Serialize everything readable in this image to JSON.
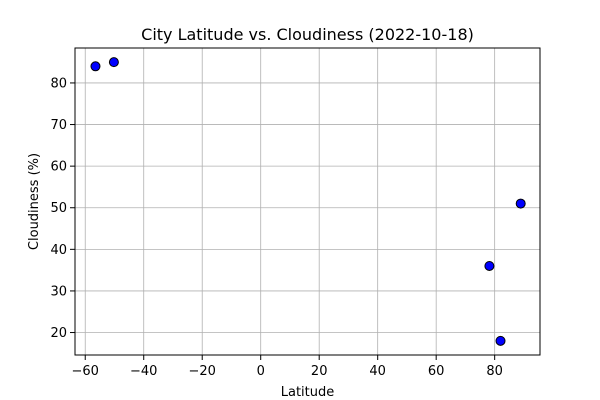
{
  "chart_data": {
    "type": "scatter",
    "title": "City Latitude vs. Cloudiness (2022-10-18)",
    "xlabel": "Latitude",
    "ylabel": "Cloudiness (%)",
    "xlim": [
      -63.5,
      95.5
    ],
    "ylim": [
      14.6,
      88.4
    ],
    "xticks": [
      -60,
      -40,
      -20,
      0,
      20,
      40,
      60,
      80
    ],
    "xtick_labels": [
      "−60",
      "−40",
      "−20",
      "0",
      "20",
      "40",
      "60",
      "80"
    ],
    "yticks": [
      20,
      30,
      40,
      50,
      60,
      70,
      80
    ],
    "ytick_labels": [
      "20",
      "30",
      "40",
      "50",
      "60",
      "70",
      "80"
    ],
    "grid": true,
    "marker_color": "#0000ff",
    "marker_edge_color": "#000000",
    "points": [
      {
        "x": -56.5,
        "y": 84
      },
      {
        "x": -50.2,
        "y": 85
      },
      {
        "x": 78.2,
        "y": 36
      },
      {
        "x": 82.0,
        "y": 18
      },
      {
        "x": 88.9,
        "y": 51
      }
    ]
  }
}
